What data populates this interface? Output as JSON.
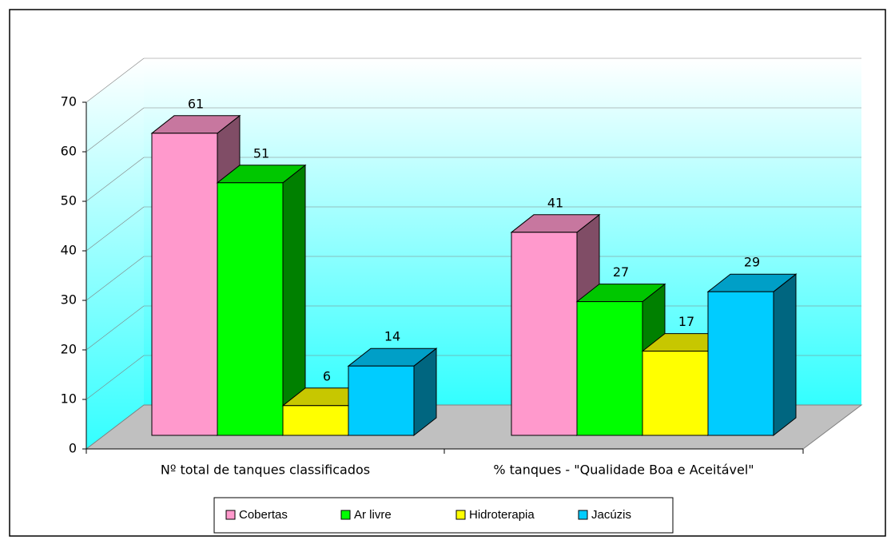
{
  "chart_data": {
    "type": "bar3d",
    "categories": [
      "Nº total de tanques classificados",
      "% tanques - \"Qualidade Boa e Aceitável\""
    ],
    "series": [
      {
        "name": "Cobertas",
        "color": "#ff99cc",
        "values": [
          61,
          41
        ]
      },
      {
        "name": "Ar livre",
        "color": "#00ff00",
        "values": [
          51,
          27
        ]
      },
      {
        "name": "Hidroterapia",
        "color": "#ffff00",
        "values": [
          6,
          17
        ]
      },
      {
        "name": "Jacúzis",
        "color": "#00ccff",
        "values": [
          14,
          29
        ]
      }
    ],
    "ylim": [
      0,
      70
    ],
    "yticks": [
      0,
      10,
      20,
      30,
      40,
      50,
      60,
      70
    ],
    "grid": true,
    "legend": "bottom"
  }
}
